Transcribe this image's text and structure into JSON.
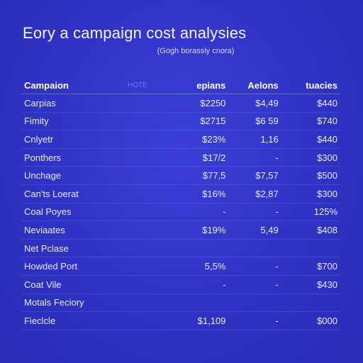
{
  "title": "Eory a campaign cost analysies",
  "subtitle": "(Gogh borassly cnora)",
  "table": {
    "headers": [
      "Campaion",
      "HOTE",
      "epians",
      "Aelons",
      "tuacies"
    ],
    "rows": [
      {
        "name": "Carpias",
        "v1": "$2250",
        "v2": "$4,49",
        "v3": "$440"
      },
      {
        "name": "Fimity",
        "v1": "$2715",
        "v2": "$6 59",
        "v3": "$740"
      },
      {
        "name": "Cnlyetr",
        "v1": "$23%",
        "v2": "1,16",
        "v3": "$440"
      },
      {
        "name": "Ponthers",
        "v1": "$17/2",
        "v2": "-",
        "v3": "$300"
      },
      {
        "name": "Unchage",
        "v1": "$77,5",
        "v2": "$7,57",
        "v3": "$500"
      },
      {
        "name": "Can'ts Loerat",
        "v1": "$16%",
        "v2": "$2,87",
        "v3": "$300"
      },
      {
        "name": "Coal Poyes",
        "v1": "-",
        "v2": "-",
        "v3": "125%"
      },
      {
        "name": "Neviaates",
        "v1": "$19%",
        "v2": "5,49",
        "v3": "$408"
      },
      {
        "name": "Net Pclase",
        "v1": "",
        "v2": "",
        "v3": ""
      },
      {
        "name": "Howded Port",
        "v1": "5,5%",
        "v2": "-",
        "v3": "$700"
      },
      {
        "name": "Coat Vile",
        "v1": "-",
        "v2": "-",
        "v3": "$430"
      },
      {
        "name": "Motals Feciory",
        "v1": "",
        "v2": "",
        "v3": ""
      },
      {
        "name": "Fieclcle",
        "v1": "$1,109",
        "v2": "-",
        "v3": "$000"
      }
    ]
  }
}
